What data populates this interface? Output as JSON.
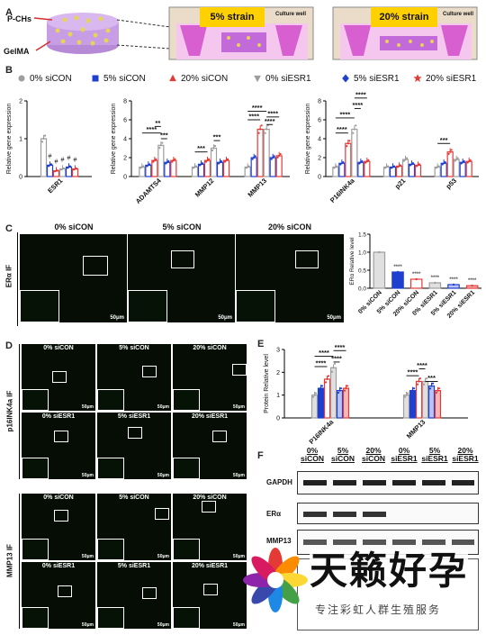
{
  "panels": {
    "a": "A",
    "b": "B",
    "c": "C",
    "d": "D",
    "e": "E",
    "f": "F"
  },
  "panelA": {
    "pchs_label": "P-CHs",
    "gelma_label": "GelMA",
    "strain1": "5% strain",
    "strain2": "20% strain",
    "culture_well": "Culture well"
  },
  "legend": [
    {
      "label": "0% siCON",
      "color": "#9e9e9e",
      "marker": "circle"
    },
    {
      "label": "5% siCON",
      "color": "#1f3fd1",
      "marker": "square"
    },
    {
      "label": "20% siCON",
      "color": "#e53935",
      "marker": "triangle"
    },
    {
      "label": "0% siESR1",
      "color": "#9e9e9e",
      "marker": "triangle-down"
    },
    {
      "label": "5% siESR1",
      "color": "#1f3fd1",
      "marker": "diamond"
    },
    {
      "label": "20% siESR1",
      "color": "#e53935",
      "marker": "star"
    }
  ],
  "chart_data": [
    {
      "type": "bar",
      "ylabel": "Relative gene expression",
      "ylim": [
        0,
        2
      ],
      "yticks": [
        "0",
        "1",
        "2"
      ],
      "categories": [
        "ESR1"
      ],
      "series": [
        {
          "name": "0% siCON",
          "values": [
            1.0
          ]
        },
        {
          "name": "5% siCON",
          "values": [
            0.3
          ]
        },
        {
          "name": "20% siCON",
          "values": [
            0.15
          ]
        },
        {
          "name": "0% siESR1",
          "values": [
            0.2
          ]
        },
        {
          "name": "5% siESR1",
          "values": [
            0.25
          ]
        },
        {
          "name": "20% siESR1",
          "values": [
            0.2
          ]
        }
      ],
      "annotations": [
        "#",
        "#",
        "#",
        "#",
        "#"
      ]
    },
    {
      "type": "bar",
      "ylabel": "Relative gene expression",
      "ylim": [
        0,
        8
      ],
      "yticks": [
        "0",
        "2",
        "4",
        "6",
        "8"
      ],
      "categories": [
        "ADAMTS4",
        "MMP12",
        "MMP13"
      ],
      "series": [
        {
          "name": "0% siCON",
          "values": [
            1.0,
            1.0,
            1.0
          ]
        },
        {
          "name": "5% siCON",
          "values": [
            1.2,
            1.3,
            2.0
          ]
        },
        {
          "name": "20% siCON",
          "values": [
            1.7,
            1.7,
            5.0
          ]
        },
        {
          "name": "0% siESR1",
          "values": [
            3.3,
            3.0,
            5.0
          ]
        },
        {
          "name": "5% siESR1",
          "values": [
            1.5,
            1.5,
            2.0
          ]
        },
        {
          "name": "20% siESR1",
          "values": [
            1.7,
            1.7,
            2.2
          ]
        }
      ],
      "annotations": [
        "****",
        "***",
        "**",
        "***",
        "***",
        "****",
        "****",
        "****",
        "****"
      ]
    },
    {
      "type": "bar",
      "ylabel": "Relative gene expression",
      "ylim": [
        0,
        8
      ],
      "yticks": [
        "0",
        "2",
        "4",
        "6",
        "8"
      ],
      "categories": [
        "P16INK4a",
        "p21",
        "p53"
      ],
      "series": [
        {
          "name": "0% siCON",
          "values": [
            1.0,
            1.0,
            1.0
          ]
        },
        {
          "name": "5% siCON",
          "values": [
            1.4,
            1.0,
            1.4
          ]
        },
        {
          "name": "20% siCON",
          "values": [
            3.5,
            1.1,
            2.6
          ]
        },
        {
          "name": "0% siESR1",
          "values": [
            5.0,
            1.8,
            1.8
          ]
        },
        {
          "name": "5% siESR1",
          "values": [
            1.5,
            1.3,
            1.5
          ]
        },
        {
          "name": "20% siESR1",
          "values": [
            1.6,
            1.2,
            1.6
          ]
        }
      ],
      "annotations": [
        "****",
        "****",
        "****",
        "****",
        "***"
      ]
    },
    {
      "type": "bar",
      "ylabel": "ERα Relative level",
      "ylim": [
        0,
        1.5
      ],
      "yticks": [
        "0.0",
        "0.5",
        "1.0",
        "1.5"
      ],
      "categories": [
        "0% siCON",
        "5% siCON",
        "20% siCON",
        "0% siESR1",
        "5% siESR1",
        "20% siESR1"
      ],
      "values": [
        1.0,
        0.45,
        0.25,
        0.15,
        0.1,
        0.07
      ],
      "annotations": [
        "****",
        "****",
        "****",
        "****",
        "****"
      ]
    },
    {
      "type": "bar",
      "ylabel": "Protein Relative level",
      "ylim": [
        0,
        3
      ],
      "yticks": [
        "0",
        "1",
        "2",
        "3"
      ],
      "categories": [
        "P16INK4a",
        "MMP13"
      ],
      "series": [
        {
          "name": "0% siCON",
          "values": [
            1.0,
            1.0
          ]
        },
        {
          "name": "5% siCON",
          "values": [
            1.3,
            1.2
          ]
        },
        {
          "name": "20% siCON",
          "values": [
            1.7,
            1.6
          ]
        },
        {
          "name": "0% siESR1",
          "values": [
            2.2,
            1.6
          ]
        },
        {
          "name": "5% siESR1",
          "values": [
            1.2,
            1.4
          ]
        },
        {
          "name": "20% siESR1",
          "values": [
            1.3,
            1.2
          ]
        }
      ],
      "annotations": [
        "****",
        "****",
        "****",
        "****",
        "****",
        "***"
      ]
    }
  ],
  "panelC": {
    "side_label": "ERα IF",
    "titles": [
      "0% siCON",
      "5% siCON",
      "20% siCON"
    ],
    "scale": "50μm"
  },
  "panelD": {
    "p16_label": "p16INK4a IF",
    "mmp13_label": "MMP13 IF",
    "row_titles_top": [
      "0% siCON",
      "5% siCON",
      "20% siCON"
    ],
    "row_titles_bottom": [
      "0% siESR1",
      "5% siESR1",
      "20% siESR1"
    ],
    "scale": "50μm"
  },
  "panelF": {
    "columns": [
      "0%\nsiCON",
      "5%\nsiCON",
      "20%\nsiCON",
      "0%\nsiESR1",
      "5%\nsiESR1",
      "20%\nsiESR1"
    ],
    "rows": [
      "GAPDH",
      "ERα",
      "MMP13"
    ]
  },
  "watermark": {
    "title": "天籁好孕",
    "subtitle": "专注彩虹人群生殖服务"
  }
}
